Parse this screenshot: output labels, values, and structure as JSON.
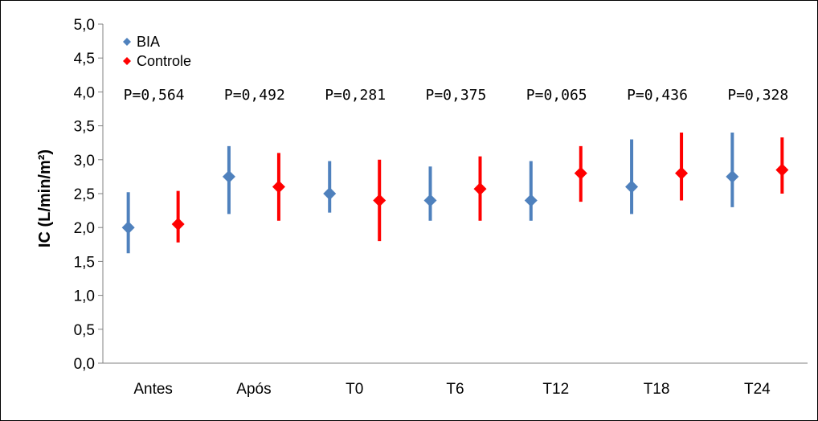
{
  "chart_data": {
    "type": "scatter",
    "title": "",
    "xlabel": "",
    "ylabel": "IC (L/min/m²)",
    "ylim": [
      0,
      5
    ],
    "yticks": [
      "0,0",
      "0,5",
      "1,0",
      "1,5",
      "2,0",
      "2,5",
      "3,0",
      "3,5",
      "4,0",
      "4,5",
      "5,0"
    ],
    "categories": [
      "Antes",
      "Após",
      "T0",
      "T6",
      "T12",
      "T18",
      "T24"
    ],
    "legend_position": "top-left",
    "grid": false,
    "series": [
      {
        "name": "BIA",
        "color": "#4f81bd",
        "marker": "diamond",
        "values": [
          2.0,
          2.75,
          2.5,
          2.4,
          2.4,
          2.6,
          2.75
        ],
        "lower": [
          1.62,
          2.2,
          2.22,
          2.1,
          2.1,
          2.2,
          2.3
        ],
        "upper": [
          2.52,
          3.2,
          2.98,
          2.9,
          2.98,
          3.3,
          3.4
        ]
      },
      {
        "name": "Controle",
        "color": "#ff0000",
        "marker": "diamond",
        "values": [
          2.05,
          2.6,
          2.4,
          2.57,
          2.8,
          2.8,
          2.85
        ],
        "lower": [
          1.78,
          2.1,
          1.8,
          2.1,
          2.38,
          2.4,
          2.5
        ],
        "upper": [
          2.54,
          3.1,
          3.0,
          3.05,
          3.2,
          3.4,
          3.33
        ]
      }
    ],
    "annotations": [
      "P=0,564",
      "P=0,492",
      "P=0,281",
      "P=0,375",
      "P=0,065",
      "P=0,436",
      "P=0,328"
    ]
  }
}
